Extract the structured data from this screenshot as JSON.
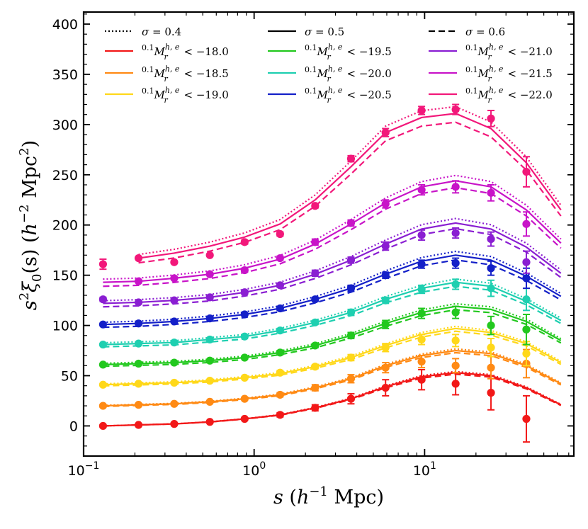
{
  "chart_data": {
    "type": "line",
    "x_scale": "log",
    "xlim": [
      0.1,
      75
    ],
    "ylim": [
      -30,
      412
    ],
    "x_ticks": [
      {
        "value": 0.1,
        "base": "10",
        "exp": "−1"
      },
      {
        "value": 1,
        "base": "10",
        "exp": "0"
      },
      {
        "value": 10,
        "base": "10",
        "exp": "1"
      }
    ],
    "y_ticks": [
      0,
      50,
      100,
      150,
      200,
      250,
      300,
      350,
      400
    ],
    "xlabel": {
      "var": "s",
      "open": " (",
      "unit_base": "h",
      "unit_exp": "−1",
      "unit_tail": " Mpc)"
    },
    "ylabel": {
      "var": "s",
      "var_exp": "2",
      "func": "ξ",
      "func_sub": "0",
      "arg": "(s) (",
      "unit_base": "h",
      "unit_exp": "−2",
      "unit_tail": " Mpc",
      "unit_tail_exp": "2",
      "close": ")"
    },
    "model_x": [
      0.13,
      0.21,
      0.34,
      0.55,
      0.88,
      1.42,
      2.28,
      3.7,
      5.9,
      9.6,
      15.2,
      24.5,
      39.5,
      63
    ],
    "data_x": [
      0.13,
      0.21,
      0.34,
      0.55,
      0.88,
      1.42,
      2.28,
      3.7,
      5.9,
      9.6,
      15.2,
      24.5,
      39.5
    ],
    "sigma_legend": [
      {
        "label": "σ = 0.4",
        "style": "dotted"
      },
      {
        "label": "σ = 0.5",
        "style": "solid"
      },
      {
        "label": "σ = 0.6",
        "style": "dashed"
      }
    ],
    "series": [
      {
        "name": "⁰·¹Mᵣʰ,ᵉ < −18.0",
        "sup": "0.1",
        "mag": "M",
        "msup": "h, e",
        "msub": "r",
        "threshold": "< −18.0",
        "color": "#f21818",
        "model": [
          0,
          1,
          2,
          4,
          7,
          11,
          18,
          27,
          39,
          49,
          53,
          50,
          38,
          21
        ],
        "data": [
          0,
          1,
          2,
          4,
          7,
          11,
          18,
          27,
          38,
          46,
          42,
          33,
          7
        ],
        "err": [
          1,
          1,
          1,
          1,
          1,
          2,
          3,
          5,
          8,
          10,
          11,
          17,
          23
        ]
      },
      {
        "name": "⁰·¹Mᵣʰ,ᵉ < −18.5",
        "sup": "0.1",
        "mag": "M",
        "msup": "h, e",
        "msub": "r",
        "threshold": "< −18.5",
        "color": "#ff8a14",
        "model": [
          20,
          21,
          22,
          24,
          27,
          31,
          38,
          47,
          60,
          70,
          75,
          72,
          60,
          42
        ],
        "data": [
          20,
          21,
          22,
          24,
          27,
          31,
          38,
          47,
          58,
          64,
          60,
          58,
          62
        ],
        "err": [
          1,
          1,
          1,
          1,
          1,
          2,
          3,
          4,
          5,
          6,
          7,
          11,
          14
        ]
      },
      {
        "name": "⁰·¹Mᵣʰ,ᵉ < −19.0",
        "sup": "0.1",
        "mag": "M",
        "msup": "h, e",
        "msub": "r",
        "threshold": "< −19.0",
        "color": "#ffd81a",
        "model": [
          41,
          42,
          43,
          45,
          48,
          52,
          59,
          68,
          80,
          91,
          97,
          93,
          82,
          63
        ],
        "data": [
          41,
          42,
          43,
          45,
          48,
          53,
          59,
          68,
          78,
          86,
          85,
          78,
          72
        ],
        "err": [
          1,
          1,
          1,
          1,
          1,
          2,
          2,
          3,
          4,
          5,
          6,
          9,
          12
        ]
      },
      {
        "name": "⁰·¹Mᵣʰ,ᵉ < −19.5",
        "sup": "0.1",
        "mag": "M",
        "msup": "h, e",
        "msub": "r",
        "threshold": "< −19.5",
        "color": "#22c81e",
        "model": [
          61,
          62,
          63,
          65,
          68,
          73,
          80,
          90,
          102,
          113,
          119,
          116,
          104,
          85
        ],
        "data": [
          61,
          62,
          63,
          65,
          68,
          73,
          80,
          90,
          101,
          112,
          113,
          100,
          96
        ],
        "err": [
          1,
          1,
          1,
          1,
          1,
          2,
          2,
          3,
          4,
          5,
          6,
          9,
          15
        ]
      },
      {
        "name": "⁰·¹Mᵣʰ,ᵉ < −20.0",
        "sup": "0.1",
        "mag": "M",
        "msup": "h, e",
        "msub": "r",
        "threshold": "< −20.0",
        "color": "#1ecfb0",
        "model": [
          81,
          82,
          83,
          86,
          89,
          95,
          103,
          113,
          126,
          137,
          143,
          139,
          124,
          105
        ],
        "data": [
          81,
          82,
          83,
          86,
          89,
          95,
          103,
          113,
          125,
          136,
          141,
          137,
          126
        ],
        "err": [
          1,
          1,
          1,
          1,
          1,
          2,
          2,
          3,
          3,
          4,
          5,
          8,
          11
        ]
      },
      {
        "name": "⁰·¹Mᵣʰ,ᵉ < −20.5",
        "sup": "0.1",
        "mag": "M",
        "msup": "h, e",
        "msub": "r",
        "threshold": "< −20.5",
        "color": "#1420c8",
        "model": [
          101,
          102,
          104,
          107,
          111,
          117,
          126,
          137,
          151,
          164,
          170,
          165,
          149,
          129
        ],
        "data": [
          101,
          102,
          104,
          107,
          111,
          117,
          126,
          137,
          150,
          161,
          162,
          157,
          147
        ],
        "err": [
          1,
          1,
          1,
          1,
          1,
          2,
          2,
          3,
          3,
          4,
          5,
          7,
          10
        ]
      },
      {
        "name": "⁰·¹Mᵣʰ,ᵉ < −21.0",
        "sup": "0.1",
        "mag": "M",
        "msup": "h, e",
        "msub": "r",
        "threshold": "< −21.0",
        "color": "#8a1ed2",
        "model": [
          122,
          123,
          125,
          128,
          133,
          140,
          151,
          165,
          181,
          196,
          202,
          196,
          178,
          152
        ],
        "data": [
          126,
          123,
          125,
          128,
          133,
          140,
          152,
          165,
          179,
          190,
          192,
          186,
          163
        ],
        "err": [
          2,
          1,
          1,
          1,
          2,
          2,
          3,
          3,
          4,
          5,
          5,
          7,
          11
        ]
      },
      {
        "name": "⁰·¹Mᵣʰ,ᵉ < −21.5",
        "sup": "0.1",
        "mag": "M",
        "msup": "h, e",
        "msub": "r",
        "threshold": "< −21.5",
        "color": "#c814c8",
        "model": [
          143,
          144,
          147,
          151,
          157,
          166,
          181,
          201,
          222,
          238,
          244,
          238,
          215,
          182
        ],
        "data": [
          null,
          144,
          147,
          151,
          155,
          167,
          183,
          202,
          221,
          235,
          238,
          232,
          201
        ],
        "err": [
          0,
          1,
          1,
          1,
          2,
          2,
          3,
          3,
          4,
          5,
          6,
          8,
          12
        ]
      },
      {
        "name": "⁰·¹Mᵣʰ,ᵉ < −22.0",
        "sup": "0.1",
        "mag": "M",
        "msup": "h, e",
        "msub": "r",
        "threshold": "< −22.0",
        "color": "#f2187a",
        "model": [
          null,
          167,
          172,
          179,
          188,
          201,
          225,
          258,
          292,
          307,
          311,
          296,
          262,
          215
        ],
        "data": [
          161,
          167,
          163,
          170,
          183,
          191,
          219,
          266,
          292,
          314,
          315,
          306,
          253
        ],
        "err": [
          5,
          1,
          1,
          1,
          2,
          2,
          2,
          3,
          4,
          4,
          5,
          8,
          15
        ]
      }
    ]
  }
}
